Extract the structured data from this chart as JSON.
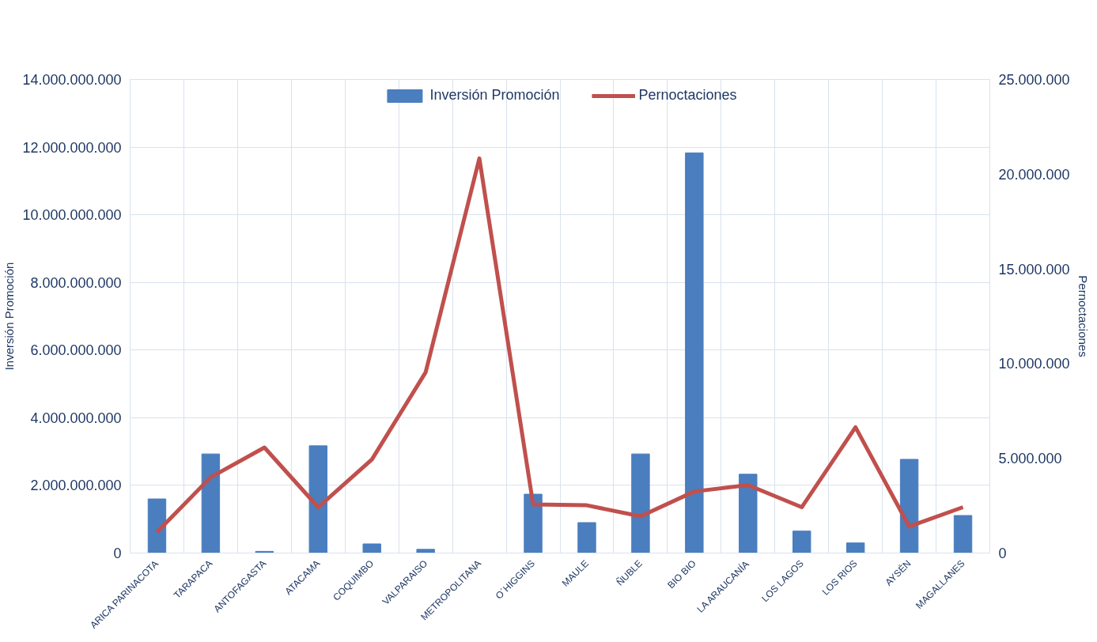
{
  "chart_data": {
    "type": "bar",
    "ylabel": "Inversión Promoción",
    "y2label": "Pernoctaciones",
    "categories": [
      "ARICA PARINACOTA",
      "TARAPACA",
      "ANTOFAGASTA",
      "ATACAMA",
      "COQUIMBO",
      "VALPARAISO",
      "METROPOLITANA",
      "O´HIGGINS",
      "MAULE",
      "ÑUBLE",
      "BIO BIO",
      "LA ARAUCANÍA",
      "LOS LAGOS",
      "LOS RIOS",
      "AYSÉN",
      "MAGALLANES"
    ],
    "series": [
      {
        "name": "Inversión Promoción",
        "color": "#4a7ebf",
        "values": [
          1600000000,
          2930000000,
          50000000,
          3170000000,
          270000000,
          110000000,
          0,
          1740000000,
          900000000,
          2930000000,
          11830000000,
          2330000000,
          650000000,
          300000000,
          2770000000,
          1110000000
        ]
      },
      {
        "name": "Pernoctaciones",
        "type": "line",
        "axis": "y2",
        "color": "#c0504d",
        "values": [
          1110000,
          4000000,
          5570000,
          2420000,
          4940000,
          9540000,
          20830000,
          2570000,
          2520000,
          1940000,
          3250000,
          3590000,
          2420000,
          6640000,
          1400000,
          2420000
        ]
      }
    ],
    "ylim": [
      0,
      14000000000
    ],
    "yticks": [
      {
        "value": 0,
        "label": "0"
      },
      {
        "value": 2000000000,
        "label": "2.000.000.000"
      },
      {
        "value": 4000000000,
        "label": "4.000.000.000"
      },
      {
        "value": 6000000000,
        "label": "6.000.000.000"
      },
      {
        "value": 8000000000,
        "label": "8.000.000.000"
      },
      {
        "value": 10000000000,
        "label": "10.000.000.000"
      },
      {
        "value": 12000000000,
        "label": "12.000.000.000"
      },
      {
        "value": 14000000000,
        "label": "14.000.000.000"
      }
    ],
    "y2lim": [
      0,
      25000000
    ],
    "y2ticks": [
      {
        "value": 0,
        "label": "0"
      },
      {
        "value": 5000000,
        "label": "5.000.000"
      },
      {
        "value": 10000000,
        "label": "10.000.000"
      },
      {
        "value": 15000000,
        "label": "15.000.000"
      },
      {
        "value": 20000000,
        "label": "20.000.000"
      },
      {
        "value": 25000000,
        "label": "25.000.000"
      }
    ],
    "grid": true,
    "legend": "top",
    "line_style": "solid",
    "marker": "none"
  }
}
